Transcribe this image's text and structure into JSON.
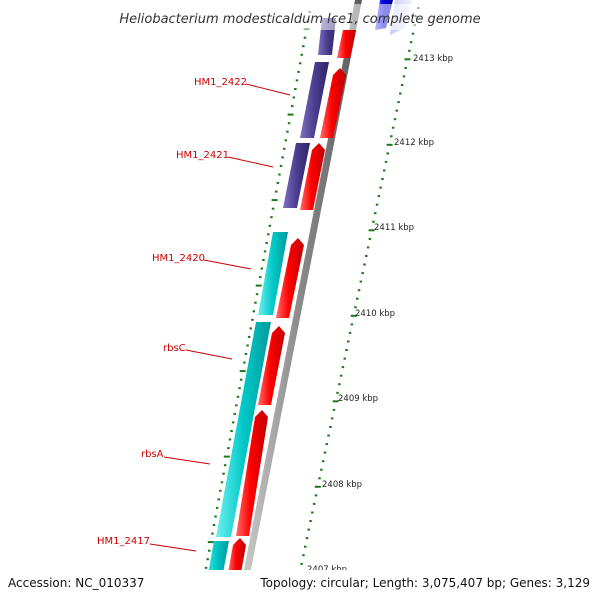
{
  "title": "Heliobacterium modesticaldum Ice1, complete genome",
  "accession": "Accession: NC_010337",
  "topology": "Topology: circular; Length: 3,075,407 bp; Genes: 3,129",
  "colors": {
    "forward_cds": "#ff0000",
    "reverse_cds_purple": "#4b3d8f",
    "reverse_cds_cyan": "#00c8c8",
    "reverse_cds_blue": "#0000dd",
    "backbone": "#888888",
    "tick": "#1a7a1a",
    "gene_label": "#cc0000"
  },
  "scale_labels": [
    {
      "text": "2413 kbp",
      "kbp": 2413
    },
    {
      "text": "2412 kbp",
      "kbp": 2412
    },
    {
      "text": "2411 kbp",
      "kbp": 2411
    },
    {
      "text": "2410 kbp",
      "kbp": 2410
    },
    {
      "text": "2409 kbp",
      "kbp": 2409
    },
    {
      "text": "2408 kbp",
      "kbp": 2408
    },
    {
      "text": "2407 kbp",
      "kbp": 2407
    }
  ],
  "gene_labels": [
    {
      "text": "HM1_2422"
    },
    {
      "text": "HM1_2421"
    },
    {
      "text": "HM1_2420"
    },
    {
      "text": "rbsC"
    },
    {
      "text": "rbsA"
    },
    {
      "text": "HM1_2417"
    }
  ]
}
